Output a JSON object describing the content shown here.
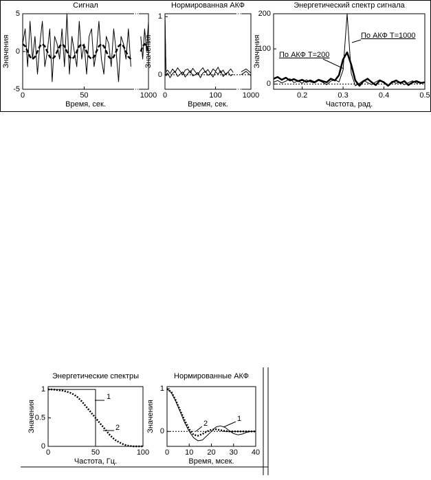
{
  "chart_data": [
    {
      "type": "line",
      "title": "Сигнал",
      "xlabel": "Время, сек.",
      "ylabel": "Значения",
      "xlim": [
        0,
        1000
      ],
      "xbreak": [
        90,
        990
      ],
      "xticks": [
        0,
        50,
        1000
      ],
      "ylim": [
        -5,
        5
      ],
      "yticks": [
        -5,
        0,
        5
      ],
      "x": [
        0,
        2,
        4,
        6,
        8,
        10,
        12,
        14,
        16,
        18,
        20,
        22,
        24,
        26,
        28,
        30,
        32,
        34,
        36,
        38,
        40,
        42,
        44,
        46,
        48,
        50,
        52,
        54,
        56,
        58,
        60,
        62,
        64,
        66,
        68,
        70,
        72,
        74,
        76,
        78,
        80,
        82,
        84,
        86,
        88,
        89,
        992,
        994,
        996,
        998,
        1000
      ],
      "series": [
        {
          "color": "#000000",
          "style": "solid",
          "width": 1,
          "values": [
            1,
            3,
            -2,
            4,
            -1,
            2,
            -3,
            1,
            4,
            -2,
            0,
            3,
            -4,
            2,
            1,
            -1,
            3,
            -2,
            5,
            -3,
            2,
            0,
            -2,
            4,
            -1,
            1,
            -3,
            2,
            3,
            -2,
            0,
            4,
            -1,
            -3,
            2,
            1,
            -2,
            3,
            0,
            -4,
            2,
            1,
            -1,
            3,
            -2,
            null,
            2,
            -1,
            3,
            0,
            4
          ]
        },
        {
          "color": "#000000",
          "style": "dashed",
          "width": 2.5,
          "values": [
            1,
            0.7,
            0,
            -0.7,
            -1,
            -0.7,
            0,
            0.7,
            1,
            0.7,
            0,
            -0.7,
            -1,
            -0.7,
            0,
            0.7,
            1,
            0.7,
            0,
            -0.7,
            -1,
            -0.7,
            0,
            0.7,
            1,
            0.7,
            0,
            -0.7,
            -1,
            -0.7,
            0,
            0.7,
            1,
            0.7,
            0,
            -0.7,
            -1,
            -0.7,
            0,
            0.7,
            1,
            0.7,
            0,
            -0.7,
            -1,
            null,
            0,
            0.7,
            1,
            0.7,
            0
          ]
        }
      ]
    },
    {
      "type": "line",
      "title": "Нормированная АКФ",
      "xlabel": "Время, сек.",
      "ylabel": "Значения",
      "xlim": [
        0,
        1000
      ],
      "xbreak": [
        140,
        990
      ],
      "xticks": [
        0,
        100,
        1000
      ],
      "ylim": [
        -0.25,
        1.05
      ],
      "yticks": [
        0,
        1
      ],
      "zero_line": true,
      "x": [
        0,
        2,
        5,
        10,
        15,
        20,
        25,
        30,
        35,
        40,
        45,
        50,
        55,
        60,
        65,
        70,
        75,
        80,
        85,
        90,
        95,
        100,
        105,
        110,
        115,
        120,
        125,
        130,
        135,
        137,
        990,
        995,
        1000
      ],
      "series": [
        {
          "color": "#000000",
          "style": "solid",
          "width": 1,
          "values": [
            1,
            0.05,
            0.08,
            0.02,
            0.1,
            0.04,
            0.12,
            0.06,
            0.0,
            0.08,
            0.1,
            0.03,
            0.11,
            0.05,
            0.0,
            0.07,
            0.12,
            0.04,
            0.09,
            0.02,
            0.1,
            0.06,
            0.13,
            0.03,
            0.08,
            0.0,
            0.05,
            0.1,
            0.04,
            null,
            0.05,
            0.1,
            0.03
          ]
        },
        {
          "color": "#000000",
          "style": "solid",
          "width": 1,
          "values": [
            1,
            -0.02,
            0.03,
            -0.05,
            0.02,
            0.06,
            -0.03,
            0.01,
            0.05,
            -0.04,
            0.02,
            0.07,
            -0.02,
            0.0,
            0.04,
            -0.05,
            0.03,
            0.06,
            -0.01,
            0.02,
            -0.04,
            0.05,
            0.01,
            0.07,
            -0.03,
            0.02,
            0.04,
            -0.02,
            0.01,
            null,
            0.0,
            0.06,
            -0.02
          ]
        }
      ]
    },
    {
      "type": "line",
      "title": "Энергетический спектр сигнала",
      "xlabel": "Частота, рад.",
      "ylabel": "Значения",
      "xlim": [
        0.13,
        0.5
      ],
      "xticks": [
        0.2,
        0.3,
        0.4,
        0.5
      ],
      "ylim": [
        -15,
        200
      ],
      "yticks": [
        0,
        100,
        200
      ],
      "zero_line": true,
      "x": [
        0.13,
        0.14,
        0.15,
        0.16,
        0.17,
        0.18,
        0.19,
        0.2,
        0.21,
        0.22,
        0.23,
        0.24,
        0.25,
        0.26,
        0.27,
        0.28,
        0.29,
        0.3,
        0.31,
        0.32,
        0.33,
        0.34,
        0.35,
        0.36,
        0.37,
        0.38,
        0.39,
        0.4,
        0.41,
        0.42,
        0.43,
        0.44,
        0.45,
        0.46,
        0.47,
        0.48,
        0.49,
        0.5
      ],
      "series": [
        {
          "name": "По АКФ T=200",
          "color": "#000000",
          "style": "solid",
          "width": 2.5,
          "values": [
            15,
            20,
            12,
            18,
            10,
            14,
            8,
            12,
            6,
            10,
            5,
            12,
            8,
            5,
            15,
            10,
            25,
            70,
            90,
            55,
            10,
            -5,
            8,
            15,
            5,
            -3,
            10,
            5,
            -5,
            5,
            10,
            3,
            8,
            -3,
            5,
            8,
            3,
            5
          ]
        },
        {
          "name": "По АКФ T=1000",
          "color": "#000000",
          "style": "solid",
          "width": 1,
          "values": [
            5,
            10,
            3,
            8,
            15,
            4,
            9,
            2,
            12,
            6,
            3,
            10,
            5,
            -2,
            8,
            12,
            6,
            40,
            200,
            30,
            -5,
            2,
            10,
            4,
            -2,
            6,
            12,
            3,
            -4,
            8,
            2,
            6,
            -2,
            4,
            9,
            2,
            5,
            3
          ]
        }
      ]
    },
    {
      "type": "line",
      "title": "Энергетические спектры",
      "xlabel": "Частота, Гц.",
      "ylabel": "Значения",
      "xlim": [
        0,
        100
      ],
      "xticks": [
        0,
        50,
        100
      ],
      "ylim": [
        0,
        1.05
      ],
      "yticks": [
        0,
        0.5,
        1
      ],
      "series": [
        {
          "name": "1",
          "color": "#000000",
          "style": "solid",
          "width": 1,
          "x": [
            0,
            50,
            50,
            100
          ],
          "values": [
            1,
            1,
            0,
            0
          ]
        },
        {
          "name": "2",
          "color": "#000000",
          "style": "dotted",
          "width": 2.5,
          "x": [
            0,
            5,
            10,
            15,
            20,
            25,
            30,
            35,
            40,
            45,
            50,
            55,
            60,
            65,
            70,
            75,
            80,
            85,
            90,
            95,
            100
          ],
          "values": [
            1,
            1,
            0.99,
            0.98,
            0.96,
            0.93,
            0.88,
            0.8,
            0.7,
            0.6,
            0.5,
            0.4,
            0.3,
            0.2,
            0.12,
            0.07,
            0.03,
            0.01,
            0,
            0,
            0
          ]
        }
      ]
    },
    {
      "type": "line",
      "title": "Нормированные  АКФ",
      "xlabel": "Время, мсек.",
      "ylabel": "Значения",
      "xlim": [
        0,
        40
      ],
      "xticks": [
        0,
        10,
        20,
        30,
        40
      ],
      "ylim": [
        -0.35,
        1.05
      ],
      "yticks": [
        0,
        1
      ],
      "zero_line": true,
      "x": [
        0,
        2,
        4,
        6,
        8,
        10,
        12,
        14,
        16,
        18,
        20,
        22,
        24,
        26,
        28,
        30,
        32,
        34,
        36,
        38,
        40
      ],
      "series": [
        {
          "name": "1",
          "color": "#000000",
          "style": "solid",
          "width": 1,
          "values": [
            1,
            0.9,
            0.7,
            0.45,
            0.2,
            0,
            -0.15,
            -0.22,
            -0.2,
            -0.1,
            0,
            0.1,
            0.13,
            0.1,
            0.02,
            -0.05,
            -0.08,
            -0.06,
            -0.02,
            0,
            0
          ]
        },
        {
          "name": "2",
          "color": "#000000",
          "style": "dotted",
          "width": 2.5,
          "values": [
            1,
            0.92,
            0.72,
            0.48,
            0.25,
            0.05,
            -0.08,
            -0.1,
            -0.06,
            0,
            0.04,
            0.05,
            0.03,
            0.01,
            0,
            0,
            0,
            0,
            0,
            0,
            0
          ]
        }
      ]
    }
  ]
}
